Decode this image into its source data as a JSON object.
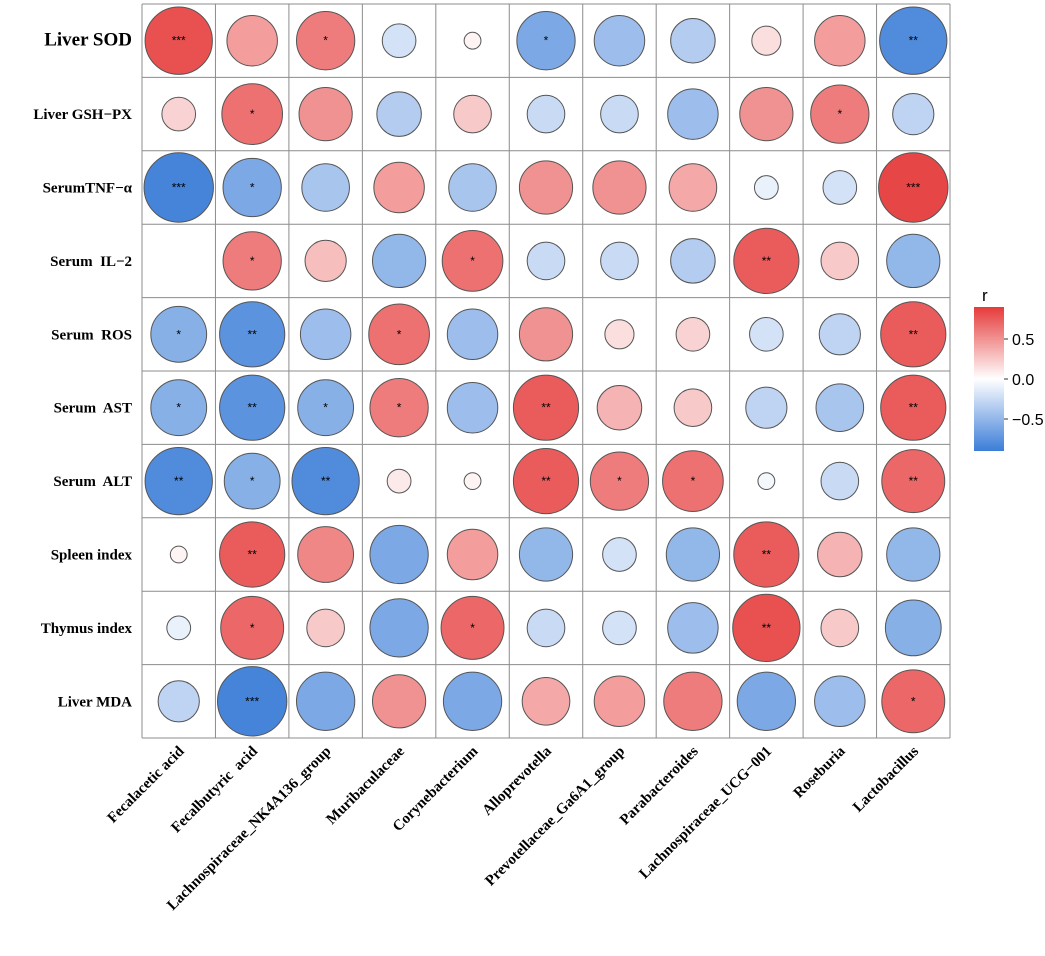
{
  "chart_data": {
    "type": "heatmap",
    "subtype": "correlation-circle",
    "rows": [
      "Liver SOD",
      "Liver GSH−PX",
      "SerumTNF−α",
      "Serum  IL−2",
      "Serum  ROS",
      "Serum  AST",
      "Serum  ALT",
      "Spleen index",
      "Thymus index",
      "Liver MDA"
    ],
    "columns": [
      "Fecalacetic acid",
      "Fecalbutyric  acid",
      "Lachnospiraceae_NK4A136_group",
      "Muribaculaceae",
      "Corynebacterium",
      "Alloprevotella",
      "Prevotellaceae_Ga6A1_group",
      "Parabacteroides",
      "Lachnospiraceae_UCG−001",
      "Roseburia",
      "Lactobacillus"
    ],
    "r": [
      [
        0.8,
        0.45,
        0.6,
        -0.2,
        0.05,
        -0.6,
        -0.45,
        -0.35,
        0.15,
        0.45,
        -0.8
      ],
      [
        0.2,
        0.65,
        0.5,
        -0.35,
        0.25,
        -0.25,
        -0.25,
        -0.45,
        0.5,
        0.6,
        -0.3
      ],
      [
        -0.85,
        -0.6,
        -0.4,
        0.45,
        -0.4,
        0.5,
        0.5,
        0.4,
        -0.1,
        -0.2,
        0.85
      ],
      [
        0.0,
        0.6,
        0.3,
        -0.5,
        0.65,
        -0.25,
        -0.25,
        -0.35,
        0.75,
        0.25,
        -0.5
      ],
      [
        -0.55,
        -0.75,
        -0.45,
        0.65,
        -0.45,
        0.5,
        0.15,
        0.2,
        -0.2,
        -0.3,
        0.75
      ],
      [
        -0.55,
        -0.75,
        -0.55,
        0.6,
        -0.45,
        0.75,
        0.35,
        0.25,
        -0.3,
        -0.4,
        0.75
      ],
      [
        -0.8,
        -0.55,
        -0.8,
        0.1,
        0.05,
        0.75,
        0.6,
        0.65,
        -0.05,
        -0.25,
        0.7
      ],
      [
        0.05,
        0.75,
        0.55,
        -0.6,
        0.45,
        -0.5,
        -0.2,
        -0.5,
        0.75,
        0.35,
        -0.5
      ],
      [
        -0.1,
        0.7,
        0.25,
        -0.6,
        0.7,
        -0.25,
        -0.2,
        -0.45,
        0.8,
        0.25,
        -0.55
      ],
      [
        -0.3,
        -0.85,
        -0.6,
        0.5,
        -0.6,
        0.4,
        0.45,
        0.6,
        -0.6,
        -0.45,
        0.7
      ]
    ],
    "significance": [
      [
        "***",
        "",
        "*",
        "",
        "",
        "*",
        "",
        "",
        "",
        "",
        "**"
      ],
      [
        "",
        "*",
        "",
        "",
        "",
        "",
        "",
        "",
        "",
        "*",
        ""
      ],
      [
        "***",
        "*",
        "",
        "",
        "",
        "",
        "",
        "",
        "",
        "",
        "***"
      ],
      [
        "",
        "*",
        "",
        "",
        "*",
        "",
        "",
        "",
        "**",
        "",
        ""
      ],
      [
        "*",
        "**",
        "",
        "*",
        "",
        "",
        "",
        "",
        "",
        "",
        "**"
      ],
      [
        "*",
        "**",
        "*",
        "*",
        "",
        "**",
        "",
        "",
        "",
        "",
        "**"
      ],
      [
        "**",
        "*",
        "**",
        "",
        "",
        "**",
        "*",
        "*",
        "",
        "",
        "**"
      ],
      [
        "",
        "**",
        "",
        "",
        "",
        "",
        "",
        "",
        "**",
        "",
        ""
      ],
      [
        "",
        "*",
        "",
        "",
        "*",
        "",
        "",
        "",
        "**",
        "",
        ""
      ],
      [
        "",
        "***",
        "",
        "",
        "",
        "",
        "",
        "",
        "",
        "",
        "*"
      ]
    ],
    "legend": {
      "title": "r",
      "ticks": [
        0.5,
        0.0,
        -0.5
      ],
      "tick_labels": [
        "0.5",
        "0.0",
        "−0.5"
      ],
      "range": [
        -0.9,
        0.9
      ],
      "position": "right",
      "colors": {
        "low": "#3b7dd8",
        "mid": "#ffffff",
        "high": "#e63b3b"
      }
    },
    "grid": true
  }
}
